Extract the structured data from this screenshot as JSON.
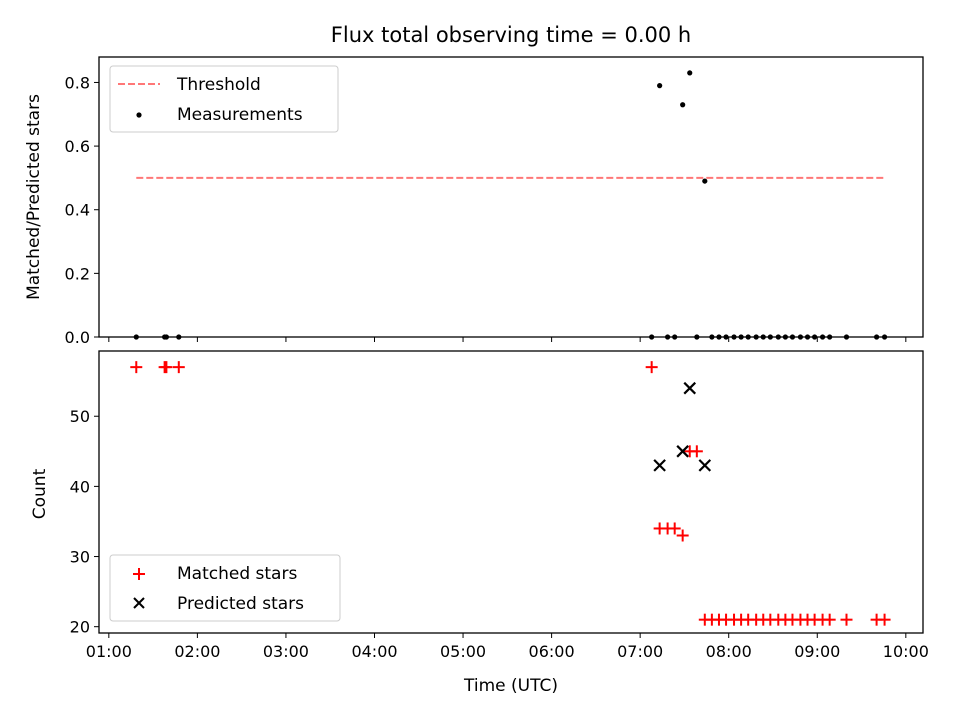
{
  "chart_data": [
    {
      "type": "scatter",
      "title": "Flux total observing time = 0.00 h",
      "ylabel": "Matched/Predicted stars",
      "xlabel": "",
      "xlim": [
        0.889,
        10.194
      ],
      "ylim": [
        0.0,
        0.88
      ],
      "x_ticks": [
        "01:00",
        "02:00",
        "03:00",
        "04:00",
        "05:00",
        "06:00",
        "07:00",
        "08:00",
        "09:00",
        "10:00"
      ],
      "y_ticks": [
        0.0,
        0.2,
        0.4,
        0.6,
        0.8
      ],
      "y_tick_labels": [
        "0.0",
        "0.2",
        "0.4",
        "0.6",
        "0.8"
      ],
      "legend_position": "upper-left",
      "threshold": {
        "name": "Threshold",
        "y": 0.5,
        "x": [
          1.31,
          9.76
        ],
        "color": "#ff7777",
        "style": "dashed"
      },
      "series": [
        {
          "name": "Measurements",
          "color": "#000000",
          "marker": "dot",
          "x": [
            1.31,
            1.63,
            1.65,
            1.79,
            7.13,
            7.22,
            7.31,
            7.39,
            7.48,
            7.56,
            7.64,
            7.73,
            7.81,
            7.89,
            7.97,
            8.06,
            8.14,
            8.22,
            8.31,
            8.39,
            8.47,
            8.56,
            8.64,
            8.72,
            8.81,
            8.89,
            8.97,
            9.06,
            9.14,
            9.33,
            9.67,
            9.76
          ],
          "y": [
            0,
            0,
            0,
            0,
            0,
            0.79,
            0,
            0,
            0.73,
            0.83,
            0,
            0.49,
            0,
            0,
            0,
            0,
            0,
            0,
            0,
            0,
            0,
            0,
            0,
            0,
            0,
            0,
            0,
            0,
            0,
            0,
            0,
            0
          ]
        }
      ]
    },
    {
      "type": "scatter",
      "title": "",
      "ylabel": "Count",
      "xlabel": "Time (UTC)",
      "xlim": [
        0.889,
        10.194
      ],
      "ylim": [
        19.1,
        59.3
      ],
      "x_ticks": [
        "01:00",
        "02:00",
        "03:00",
        "04:00",
        "05:00",
        "06:00",
        "07:00",
        "08:00",
        "09:00",
        "10:00"
      ],
      "y_ticks": [
        20,
        30,
        40,
        50
      ],
      "legend_position": "lower-left",
      "series": [
        {
          "name": "Matched stars",
          "color": "#ff0000",
          "marker": "plus",
          "x": [
            1.31,
            1.63,
            1.65,
            1.79,
            7.13,
            7.22,
            7.31,
            7.39,
            7.48,
            7.56,
            7.64,
            7.73,
            7.81,
            7.89,
            7.97,
            8.06,
            8.14,
            8.22,
            8.31,
            8.39,
            8.47,
            8.56,
            8.64,
            8.72,
            8.81,
            8.89,
            8.97,
            9.06,
            9.14,
            9.33,
            9.67,
            9.76
          ],
          "y": [
            57,
            57,
            57,
            57,
            57,
            34,
            34,
            34,
            33,
            45,
            45,
            21,
            21,
            21,
            21,
            21,
            21,
            21,
            21,
            21,
            21,
            21,
            21,
            21,
            21,
            21,
            21,
            21,
            21,
            21,
            21,
            21
          ]
        },
        {
          "name": "Predicted stars",
          "color": "#000000",
          "marker": "x",
          "x": [
            7.22,
            7.48,
            7.56,
            7.73
          ],
          "y": [
            43,
            45,
            54,
            43
          ]
        }
      ]
    }
  ]
}
